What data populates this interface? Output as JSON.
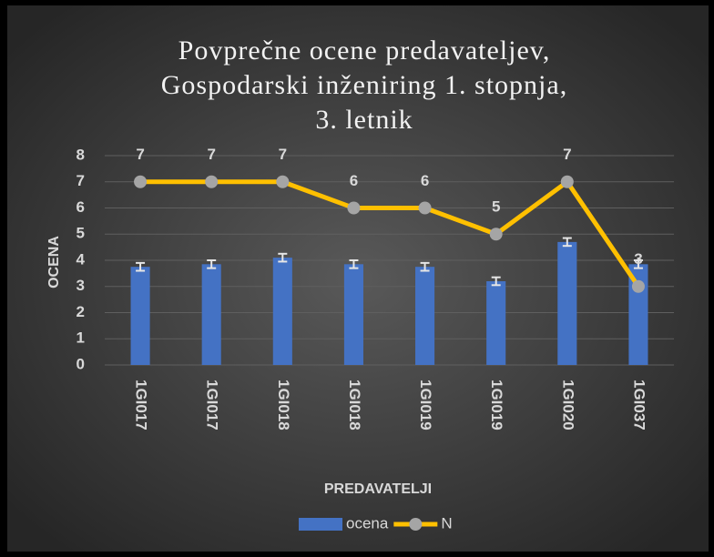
{
  "chart_data": {
    "type": "combo",
    "title": [
      "Povprečne ocene predavateljev,",
      "Gospodarski inženiring 1. stopnja,",
      "3. letnik"
    ],
    "x_label": "PREDAVATELJI",
    "y_label": "OCENA",
    "categories": [
      "1GI017",
      "1GI017",
      "1GI018",
      "1GI018",
      "1GI019",
      "1GI019",
      "1GI020",
      "1GI037"
    ],
    "series": [
      {
        "name": "ocena",
        "type": "bar",
        "color": "#4472c4",
        "values": [
          3.75,
          3.85,
          4.1,
          3.85,
          3.75,
          3.2,
          4.7,
          3.85
        ],
        "errors": [
          0.15,
          0.15,
          0.15,
          0.15,
          0.15,
          0.15,
          0.15,
          0.15
        ]
      },
      {
        "name": "N",
        "type": "line",
        "color": "#ffc000",
        "marker_color": "#a5a5a5",
        "values": [
          7,
          7,
          7,
          6,
          6,
          5,
          7,
          3
        ]
      }
    ],
    "ylim": [
      0,
      8
    ],
    "yticks": [
      0,
      1,
      2,
      3,
      4,
      5,
      6,
      7,
      8
    ],
    "grid": true,
    "legend": "bottom"
  }
}
